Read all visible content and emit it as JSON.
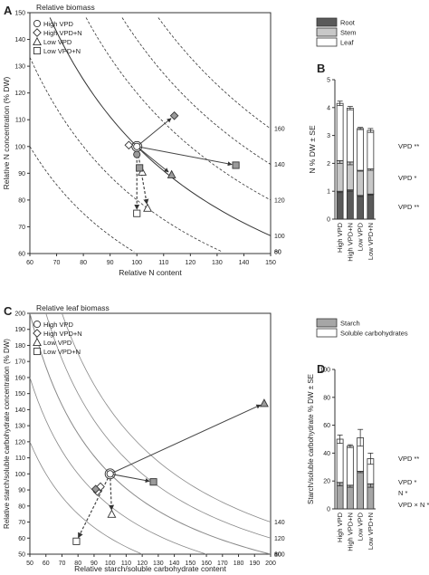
{
  "chart_data": [
    {
      "panel": "A",
      "type": "scatter",
      "xlabel": "Relative N content",
      "ylabel": "Relative N concentration (% DW)",
      "top_label": "Relative biomass",
      "xlim": [
        60,
        150
      ],
      "ylim": [
        60,
        150
      ],
      "xticks": [
        60,
        70,
        80,
        90,
        100,
        110,
        120,
        130,
        140,
        150
      ],
      "yticks": [
        60,
        70,
        80,
        90,
        100,
        110,
        120,
        130,
        140,
        150
      ],
      "isolines": [
        60,
        80,
        100,
        120,
        140,
        160
      ],
      "isoline_labels": [
        "60",
        "80",
        "100",
        "120",
        "140",
        "160"
      ],
      "legend": [
        {
          "marker": "circle",
          "label": "High VPD"
        },
        {
          "marker": "diamond",
          "label": "High VPD+N"
        },
        {
          "marker": "triangle",
          "label": "Low VPD"
        },
        {
          "marker": "square",
          "label": "Low VPD+N"
        }
      ],
      "origin": [
        100,
        100
      ],
      "series": [
        {
          "marker": "circle",
          "color": "white",
          "x": 100,
          "y": 100
        },
        {
          "marker": "diamond",
          "color": "white",
          "x": 97,
          "y": 100.5
        },
        {
          "marker": "diamond",
          "color": "grey",
          "x": 114,
          "y": 111.5
        },
        {
          "marker": "circle",
          "color": "grey",
          "x": 100,
          "y": 97
        },
        {
          "marker": "triangle",
          "color": "white",
          "x": 102,
          "y": 90.5
        },
        {
          "marker": "triangle",
          "color": "grey",
          "x": 113,
          "y": 89.5
        },
        {
          "marker": "triangle",
          "color": "white",
          "x": 104,
          "y": 77
        },
        {
          "marker": "square",
          "color": "grey",
          "x": 101,
          "y": 92
        },
        {
          "marker": "square",
          "color": "white",
          "x": 100,
          "y": 75
        },
        {
          "marker": "square",
          "color": "grey",
          "x": 137,
          "y": 93
        }
      ],
      "arrows": [
        {
          "to": [
            114,
            111.5
          ],
          "style": "solid"
        },
        {
          "to": [
            113,
            89.5
          ],
          "style": "solid"
        },
        {
          "to": [
            137,
            93
          ],
          "style": "solid"
        },
        {
          "to": [
            104,
            77
          ],
          "style": "dashed"
        },
        {
          "to": [
            100,
            75
          ],
          "style": "dashed"
        }
      ]
    },
    {
      "panel": "B",
      "type": "bar",
      "ylabel": "N % DW ± SE",
      "ylim": [
        0,
        5
      ],
      "yticks": [
        0,
        1,
        2,
        3,
        4,
        5
      ],
      "categories": [
        "High VPD",
        "High VPD+N",
        "Low VPD",
        "Low VPD+N"
      ],
      "legend": [
        {
          "label": "Root",
          "color": "#5a5a5a"
        },
        {
          "label": "Stem",
          "color": "#c8c8c8"
        },
        {
          "label": "Leaf",
          "color": "#ffffff"
        }
      ],
      "series": [
        {
          "name": "Root",
          "values": [
            1.0,
            1.05,
            0.85,
            0.9
          ]
        },
        {
          "name": "Stem",
          "values": [
            1.1,
            1.0,
            0.9,
            0.9
          ]
        },
        {
          "name": "Leaf",
          "values": [
            2.05,
            1.93,
            1.5,
            1.38
          ]
        }
      ],
      "error": {
        "Root": [
          0.05,
          0.05,
          0.04,
          0.04
        ],
        "Stem": [
          0.1,
          0.1,
          0.03,
          0.05
        ],
        "Leaf": [
          0.08,
          0.06,
          0.04,
          0.07
        ]
      },
      "significance": [
        "VPD **",
        "VPD *",
        "VPD **"
      ]
    },
    {
      "panel": "C",
      "type": "scatter",
      "xlabel": "Relative starch/soluble carbohydrate content",
      "ylabel": "Relative starch/soluble carbohydrate concentration (% DW)",
      "top_label": "Relative leaf biomass",
      "xlim": [
        50,
        200
      ],
      "ylim": [
        50,
        200
      ],
      "xticks": [
        50,
        60,
        70,
        80,
        90,
        100,
        110,
        120,
        130,
        140,
        150,
        160,
        170,
        180,
        190,
        200
      ],
      "yticks": [
        50,
        60,
        70,
        80,
        90,
        100,
        110,
        120,
        130,
        140,
        150,
        160,
        170,
        180,
        190,
        200
      ],
      "isolines": [
        60,
        80,
        100,
        120,
        140
      ],
      "isoline_labels": [
        "60",
        "80",
        "100",
        "120",
        "140"
      ],
      "legend": [
        {
          "marker": "circle",
          "label": "High VPD"
        },
        {
          "marker": "diamond",
          "label": "High VPD+N"
        },
        {
          "marker": "triangle",
          "label": "Low VPD"
        },
        {
          "marker": "square",
          "label": "Low VPD+N"
        }
      ],
      "origin": [
        100,
        100
      ],
      "series": [
        {
          "marker": "circle",
          "color": "white",
          "x": 100,
          "y": 100
        },
        {
          "marker": "triangle",
          "color": "grey",
          "x": 196,
          "y": 144
        },
        {
          "marker": "square",
          "color": "grey",
          "x": 127,
          "y": 95
        },
        {
          "marker": "diamond",
          "color": "white",
          "x": 94,
          "y": 92
        },
        {
          "marker": "diamond",
          "color": "white",
          "x": 92,
          "y": 89
        },
        {
          "marker": "diamond",
          "color": "grey",
          "x": 91,
          "y": 90.5
        },
        {
          "marker": "triangle",
          "color": "white",
          "x": 101,
          "y": 75
        },
        {
          "marker": "square",
          "color": "white",
          "x": 79,
          "y": 58
        }
      ],
      "arrows": [
        {
          "to": [
            196,
            144
          ],
          "style": "solid"
        },
        {
          "to": [
            127,
            95
          ],
          "style": "solid"
        },
        {
          "to": [
            101,
            75
          ],
          "style": "dashed"
        },
        {
          "to": [
            79,
            58
          ],
          "style": "dashed"
        }
      ]
    },
    {
      "panel": "D",
      "type": "bar",
      "ylabel": "Starch/soluble carbohydrate % DW ± SE",
      "ylim": [
        0,
        100
      ],
      "yticks": [
        0,
        20,
        40,
        60,
        80,
        100
      ],
      "categories": [
        "High VPD",
        "High VPD+N",
        "Low VPD",
        "Low VPD+N"
      ],
      "legend": [
        {
          "label": "Starch",
          "color": "#a6a6a6"
        },
        {
          "label": "Soluble carbohydrates",
          "color": "#ffffff"
        }
      ],
      "series": [
        {
          "name": "Starch",
          "values": [
            19,
            17,
            27,
            18
          ]
        },
        {
          "name": "Soluble carbohydrates",
          "values": [
            31,
            28,
            24,
            18
          ]
        }
      ],
      "error": {
        "Starch": [
          2.5,
          1.5,
          1.0,
          2.5
        ],
        "Soluble carbohydrates": [
          3,
          1,
          6,
          4
        ]
      },
      "significance": [
        "VPD **",
        "VPD *",
        "N *",
        "VPD × N *"
      ]
    }
  ]
}
